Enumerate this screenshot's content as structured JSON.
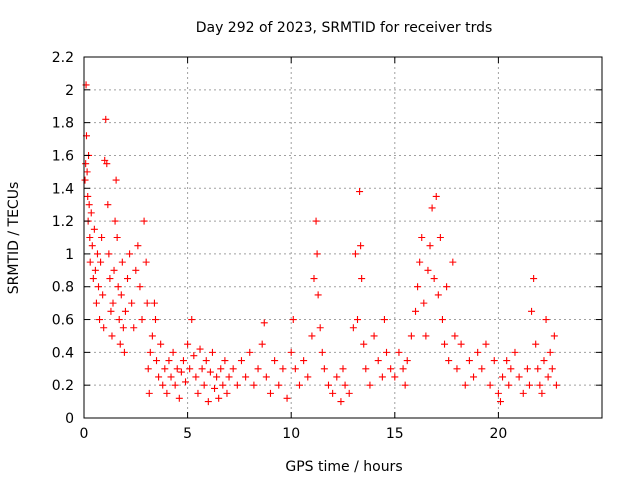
{
  "chart_data": {
    "type": "scatter",
    "title": "Day 292 of 2023, SRMTID for receiver trds",
    "xlabel": "GPS time / hours",
    "ylabel": "SRMTID / TECUs",
    "xlim": [
      0,
      25
    ],
    "ylim": [
      0,
      2.2
    ],
    "xticks": [
      0,
      5,
      10,
      15,
      20
    ],
    "yticks": [
      0,
      0.2,
      0.4,
      0.6,
      0.8,
      1,
      1.2,
      1.4,
      1.6,
      1.8,
      2,
      2.2
    ],
    "ytick_labels": [
      "0",
      "0.2",
      "0.4",
      "0.6",
      "0.8",
      "1",
      "1.2",
      "1.4",
      "1.6",
      "1.8",
      "2",
      "2.2"
    ],
    "grid": true,
    "marker": "+",
    "color": "#ff0000",
    "series": [
      {
        "name": "SRMTID",
        "points": [
          [
            0.05,
            1.45
          ],
          [
            0.08,
            1.55
          ],
          [
            0.1,
            2.03
          ],
          [
            0.12,
            1.72
          ],
          [
            0.15,
            1.5
          ],
          [
            0.18,
            1.35
          ],
          [
            0.2,
            1.2
          ],
          [
            0.22,
            1.6
          ],
          [
            0.25,
            1.3
          ],
          [
            0.28,
            1.1
          ],
          [
            0.3,
            0.95
          ],
          [
            0.35,
            1.25
          ],
          [
            0.4,
            1.05
          ],
          [
            0.45,
            0.85
          ],
          [
            0.5,
            1.15
          ],
          [
            0.55,
            0.9
          ],
          [
            0.6,
            0.7
          ],
          [
            0.65,
            1.0
          ],
          [
            0.7,
            0.8
          ],
          [
            0.75,
            0.6
          ],
          [
            0.8,
            0.95
          ],
          [
            0.85,
            1.1
          ],
          [
            0.9,
            0.75
          ],
          [
            0.95,
            0.55
          ],
          [
            1.0,
            1.57
          ],
          [
            1.05,
            1.82
          ],
          [
            1.1,
            1.55
          ],
          [
            1.15,
            1.3
          ],
          [
            1.2,
            1.0
          ],
          [
            1.25,
            0.85
          ],
          [
            1.3,
            0.65
          ],
          [
            1.35,
            0.5
          ],
          [
            1.4,
            0.7
          ],
          [
            1.45,
            0.9
          ],
          [
            1.5,
            1.2
          ],
          [
            1.55,
            1.45
          ],
          [
            1.6,
            1.1
          ],
          [
            1.65,
            0.8
          ],
          [
            1.7,
            0.6
          ],
          [
            1.75,
            0.45
          ],
          [
            1.8,
            0.75
          ],
          [
            1.85,
            0.95
          ],
          [
            1.9,
            0.55
          ],
          [
            1.95,
            0.4
          ],
          [
            2.0,
            0.65
          ],
          [
            2.1,
            0.85
          ],
          [
            2.2,
            1.0
          ],
          [
            2.3,
            0.7
          ],
          [
            2.4,
            0.55
          ],
          [
            2.5,
            0.9
          ],
          [
            2.6,
            1.05
          ],
          [
            2.7,
            0.8
          ],
          [
            2.8,
            0.6
          ],
          [
            2.9,
            1.2
          ],
          [
            3.0,
            0.95
          ],
          [
            3.05,
            0.7
          ],
          [
            3.1,
            0.3
          ],
          [
            3.15,
            0.15
          ],
          [
            3.2,
            0.4
          ],
          [
            3.3,
            0.5
          ],
          [
            3.4,
            0.7
          ],
          [
            3.45,
            0.6
          ],
          [
            3.5,
            0.35
          ],
          [
            3.6,
            0.25
          ],
          [
            3.7,
            0.45
          ],
          [
            3.8,
            0.2
          ],
          [
            3.9,
            0.3
          ],
          [
            4.0,
            0.15
          ],
          [
            4.1,
            0.35
          ],
          [
            4.2,
            0.25
          ],
          [
            4.3,
            0.4
          ],
          [
            4.4,
            0.2
          ],
          [
            4.5,
            0.3
          ],
          [
            4.6,
            0.12
          ],
          [
            4.7,
            0.28
          ],
          [
            4.8,
            0.35
          ],
          [
            4.9,
            0.22
          ],
          [
            5.0,
            0.45
          ],
          [
            5.1,
            0.3
          ],
          [
            5.2,
            0.6
          ],
          [
            5.3,
            0.38
          ],
          [
            5.4,
            0.25
          ],
          [
            5.5,
            0.15
          ],
          [
            5.6,
            0.42
          ],
          [
            5.7,
            0.3
          ],
          [
            5.8,
            0.2
          ],
          [
            5.9,
            0.35
          ],
          [
            6.0,
            0.1
          ],
          [
            6.1,
            0.28
          ],
          [
            6.2,
            0.4
          ],
          [
            6.3,
            0.18
          ],
          [
            6.4,
            0.25
          ],
          [
            6.5,
            0.12
          ],
          [
            6.6,
            0.3
          ],
          [
            6.7,
            0.2
          ],
          [
            6.8,
            0.35
          ],
          [
            6.9,
            0.15
          ],
          [
            7.0,
            0.25
          ],
          [
            7.2,
            0.3
          ],
          [
            7.4,
            0.2
          ],
          [
            7.6,
            0.35
          ],
          [
            7.8,
            0.25
          ],
          [
            8.0,
            0.4
          ],
          [
            8.2,
            0.2
          ],
          [
            8.4,
            0.3
          ],
          [
            8.6,
            0.45
          ],
          [
            8.7,
            0.58
          ],
          [
            8.8,
            0.25
          ],
          [
            9.0,
            0.15
          ],
          [
            9.2,
            0.35
          ],
          [
            9.4,
            0.2
          ],
          [
            9.6,
            0.3
          ],
          [
            9.8,
            0.12
          ],
          [
            10.0,
            0.4
          ],
          [
            10.1,
            0.6
          ],
          [
            10.2,
            0.3
          ],
          [
            10.4,
            0.2
          ],
          [
            10.6,
            0.35
          ],
          [
            10.8,
            0.25
          ],
          [
            11.0,
            0.5
          ],
          [
            11.1,
            0.85
          ],
          [
            11.2,
            1.2
          ],
          [
            11.25,
            1.0
          ],
          [
            11.3,
            0.75
          ],
          [
            11.4,
            0.55
          ],
          [
            11.5,
            0.4
          ],
          [
            11.6,
            0.3
          ],
          [
            11.8,
            0.2
          ],
          [
            12.0,
            0.15
          ],
          [
            12.2,
            0.25
          ],
          [
            12.4,
            0.1
          ],
          [
            12.5,
            0.3
          ],
          [
            12.6,
            0.2
          ],
          [
            12.8,
            0.15
          ],
          [
            13.0,
            0.55
          ],
          [
            13.1,
            1.0
          ],
          [
            13.2,
            0.6
          ],
          [
            13.3,
            1.38
          ],
          [
            13.35,
            1.05
          ],
          [
            13.4,
            0.85
          ],
          [
            13.5,
            0.45
          ],
          [
            13.6,
            0.3
          ],
          [
            13.8,
            0.2
          ],
          [
            14.0,
            0.5
          ],
          [
            14.2,
            0.35
          ],
          [
            14.4,
            0.25
          ],
          [
            14.5,
            0.6
          ],
          [
            14.6,
            0.4
          ],
          [
            14.8,
            0.3
          ],
          [
            15.0,
            0.25
          ],
          [
            15.2,
            0.4
          ],
          [
            15.4,
            0.3
          ],
          [
            15.5,
            0.2
          ],
          [
            15.6,
            0.35
          ],
          [
            15.8,
            0.5
          ],
          [
            16.0,
            0.65
          ],
          [
            16.1,
            0.8
          ],
          [
            16.2,
            0.95
          ],
          [
            16.3,
            1.1
          ],
          [
            16.4,
            0.7
          ],
          [
            16.5,
            0.5
          ],
          [
            16.6,
            0.9
          ],
          [
            16.7,
            1.05
          ],
          [
            16.8,
            1.28
          ],
          [
            16.9,
            0.85
          ],
          [
            17.0,
            1.35
          ],
          [
            17.1,
            0.75
          ],
          [
            17.2,
            1.1
          ],
          [
            17.3,
            0.6
          ],
          [
            17.4,
            0.45
          ],
          [
            17.5,
            0.8
          ],
          [
            17.6,
            0.35
          ],
          [
            17.8,
            0.95
          ],
          [
            17.9,
            0.5
          ],
          [
            18.0,
            0.3
          ],
          [
            18.2,
            0.45
          ],
          [
            18.4,
            0.2
          ],
          [
            18.6,
            0.35
          ],
          [
            18.8,
            0.25
          ],
          [
            19.0,
            0.4
          ],
          [
            19.2,
            0.3
          ],
          [
            19.4,
            0.45
          ],
          [
            19.6,
            0.2
          ],
          [
            19.8,
            0.35
          ],
          [
            20.0,
            0.15
          ],
          [
            20.1,
            0.1
          ],
          [
            20.2,
            0.25
          ],
          [
            20.4,
            0.35
          ],
          [
            20.5,
            0.2
          ],
          [
            20.6,
            0.3
          ],
          [
            20.8,
            0.4
          ],
          [
            21.0,
            0.25
          ],
          [
            21.2,
            0.15
          ],
          [
            21.4,
            0.3
          ],
          [
            21.5,
            0.2
          ],
          [
            21.6,
            0.65
          ],
          [
            21.7,
            0.85
          ],
          [
            21.8,
            0.45
          ],
          [
            21.9,
            0.3
          ],
          [
            22.0,
            0.2
          ],
          [
            22.1,
            0.15
          ],
          [
            22.2,
            0.35
          ],
          [
            22.3,
            0.6
          ],
          [
            22.4,
            0.25
          ],
          [
            22.5,
            0.4
          ],
          [
            22.6,
            0.3
          ],
          [
            22.7,
            0.5
          ],
          [
            22.8,
            0.2
          ]
        ]
      }
    ]
  }
}
